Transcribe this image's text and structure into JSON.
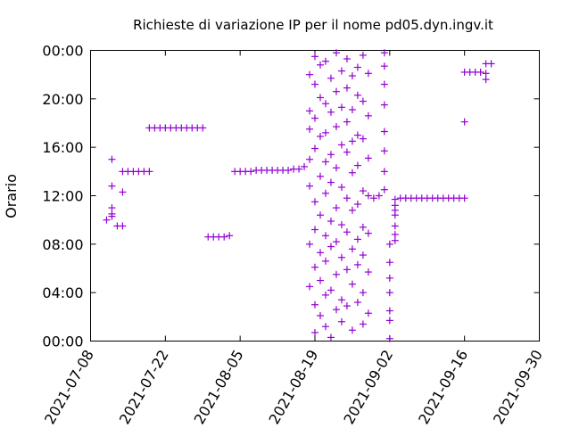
{
  "chart_data": {
    "type": "scatter",
    "title": "Richieste di variazione IP per il nome pd05.dyn.ingv.it",
    "xlabel": "",
    "ylabel": "Orario",
    "x_ticks": [
      "2021-07-08",
      "2021-07-22",
      "2021-08-05",
      "2021-08-19",
      "2021-09-02",
      "2021-09-16",
      "2021-09-30"
    ],
    "x_range": [
      "2021-07-08",
      "2021-09-30"
    ],
    "y_ticks": [
      "00:00",
      "04:00",
      "08:00",
      "12:00",
      "16:00",
      "20:00",
      "00:00"
    ],
    "y_range_hours": [
      0,
      24
    ],
    "grid": false,
    "marker": "+",
    "color": "#9400d3",
    "points": [
      [
        "2021-07-11",
        10.0
      ],
      [
        "2021-07-12",
        10.3
      ],
      [
        "2021-07-12",
        11.0
      ],
      [
        "2021-07-12",
        10.5
      ],
      [
        "2021-07-12",
        12.8
      ],
      [
        "2021-07-12",
        15.0
      ],
      [
        "2021-07-13",
        9.5
      ],
      [
        "2021-07-14",
        9.5
      ],
      [
        "2021-07-14",
        12.3
      ],
      [
        "2021-07-14",
        14.0
      ],
      [
        "2021-07-15",
        14.0
      ],
      [
        "2021-07-16",
        14.0
      ],
      [
        "2021-07-17",
        14.0
      ],
      [
        "2021-07-18",
        14.0
      ],
      [
        "2021-07-19",
        14.0
      ],
      [
        "2021-07-19",
        17.6
      ],
      [
        "2021-07-20",
        17.6
      ],
      [
        "2021-07-21",
        17.6
      ],
      [
        "2021-07-22",
        17.6
      ],
      [
        "2021-07-23",
        17.6
      ],
      [
        "2021-07-24",
        17.6
      ],
      [
        "2021-07-25",
        17.6
      ],
      [
        "2021-07-26",
        17.6
      ],
      [
        "2021-07-27",
        17.6
      ],
      [
        "2021-07-28",
        17.6
      ],
      [
        "2021-07-29",
        17.6
      ],
      [
        "2021-07-30",
        8.6
      ],
      [
        "2021-07-31",
        8.6
      ],
      [
        "2021-08-01",
        8.6
      ],
      [
        "2021-08-02",
        8.6
      ],
      [
        "2021-08-03",
        8.7
      ],
      [
        "2021-08-04",
        14.0
      ],
      [
        "2021-08-05",
        14.0
      ],
      [
        "2021-08-06",
        14.0
      ],
      [
        "2021-08-07",
        14.0
      ],
      [
        "2021-08-08",
        14.1
      ],
      [
        "2021-08-09",
        14.1
      ],
      [
        "2021-08-10",
        14.1
      ],
      [
        "2021-08-11",
        14.1
      ],
      [
        "2021-08-12",
        14.1
      ],
      [
        "2021-08-13",
        14.1
      ],
      [
        "2021-08-14",
        14.1
      ],
      [
        "2021-08-15",
        14.2
      ],
      [
        "2021-08-16",
        14.2
      ],
      [
        "2021-08-17",
        14.4
      ],
      [
        "2021-08-18",
        15.0
      ],
      [
        "2021-08-18",
        22.0
      ],
      [
        "2021-08-18",
        19.0
      ],
      [
        "2021-08-18",
        17.5
      ],
      [
        "2021-08-18",
        12.8
      ],
      [
        "2021-08-18",
        8.0
      ],
      [
        "2021-08-18",
        4.5
      ],
      [
        "2021-08-19",
        23.5
      ],
      [
        "2021-08-19",
        21.2
      ],
      [
        "2021-08-19",
        18.4
      ],
      [
        "2021-08-19",
        15.9
      ],
      [
        "2021-08-19",
        11.5
      ],
      [
        "2021-08-19",
        9.2
      ],
      [
        "2021-08-19",
        6.1
      ],
      [
        "2021-08-19",
        3.0
      ],
      [
        "2021-08-19",
        0.7
      ],
      [
        "2021-08-20",
        22.8
      ],
      [
        "2021-08-20",
        20.1
      ],
      [
        "2021-08-20",
        16.9
      ],
      [
        "2021-08-20",
        13.6
      ],
      [
        "2021-08-20",
        10.4
      ],
      [
        "2021-08-20",
        7.3
      ],
      [
        "2021-08-20",
        5.0
      ],
      [
        "2021-08-20",
        2.1
      ],
      [
        "2021-08-21",
        23.1
      ],
      [
        "2021-08-21",
        19.6
      ],
      [
        "2021-08-21",
        17.2
      ],
      [
        "2021-08-21",
        14.8
      ],
      [
        "2021-08-21",
        12.2
      ],
      [
        "2021-08-21",
        8.7
      ],
      [
        "2021-08-21",
        6.6
      ],
      [
        "2021-08-21",
        3.8
      ],
      [
        "2021-08-21",
        1.2
      ],
      [
        "2021-08-22",
        21.7
      ],
      [
        "2021-08-22",
        18.9
      ],
      [
        "2021-08-22",
        15.4
      ],
      [
        "2021-08-22",
        13.1
      ],
      [
        "2021-08-22",
        9.9
      ],
      [
        "2021-08-22",
        7.8
      ],
      [
        "2021-08-22",
        4.2
      ],
      [
        "2021-08-22",
        0.3
      ],
      [
        "2021-08-23",
        23.8
      ],
      [
        "2021-08-23",
        20.6
      ],
      [
        "2021-08-23",
        17.7
      ],
      [
        "2021-08-23",
        14.3
      ],
      [
        "2021-08-23",
        11.0
      ],
      [
        "2021-08-23",
        8.2
      ],
      [
        "2021-08-23",
        5.5
      ],
      [
        "2021-08-23",
        2.6
      ],
      [
        "2021-08-24",
        22.3
      ],
      [
        "2021-08-24",
        19.3
      ],
      [
        "2021-08-24",
        16.2
      ],
      [
        "2021-08-24",
        12.7
      ],
      [
        "2021-08-24",
        9.6
      ],
      [
        "2021-08-24",
        6.9
      ],
      [
        "2021-08-24",
        3.4
      ],
      [
        "2021-08-24",
        1.6
      ],
      [
        "2021-08-25",
        23.3
      ],
      [
        "2021-08-25",
        20.9
      ],
      [
        "2021-08-25",
        18.1
      ],
      [
        "2021-08-25",
        15.6
      ],
      [
        "2021-08-25",
        11.8
      ],
      [
        "2021-08-25",
        9.0
      ],
      [
        "2021-08-25",
        5.9
      ],
      [
        "2021-08-25",
        2.9
      ],
      [
        "2021-08-26",
        21.9
      ],
      [
        "2021-08-26",
        19.1
      ],
      [
        "2021-08-26",
        16.5
      ],
      [
        "2021-08-26",
        13.9
      ],
      [
        "2021-08-26",
        10.8
      ],
      [
        "2021-08-26",
        7.6
      ],
      [
        "2021-08-26",
        4.7
      ],
      [
        "2021-08-26",
        0.9
      ],
      [
        "2021-08-27",
        22.6
      ],
      [
        "2021-08-27",
        20.3
      ],
      [
        "2021-08-27",
        17.0
      ],
      [
        "2021-08-27",
        14.5
      ],
      [
        "2021-08-27",
        11.3
      ],
      [
        "2021-08-27",
        8.4
      ],
      [
        "2021-08-27",
        6.3
      ],
      [
        "2021-08-27",
        3.2
      ],
      [
        "2021-08-28",
        23.6
      ],
      [
        "2021-08-28",
        19.8
      ],
      [
        "2021-08-28",
        16.7
      ],
      [
        "2021-08-28",
        12.4
      ],
      [
        "2021-08-28",
        9.4
      ],
      [
        "2021-08-28",
        7.1
      ],
      [
        "2021-08-28",
        4.0
      ],
      [
        "2021-08-28",
        1.4
      ],
      [
        "2021-08-29",
        22.1
      ],
      [
        "2021-08-29",
        18.6
      ],
      [
        "2021-08-29",
        15.1
      ],
      [
        "2021-08-29",
        12.0
      ],
      [
        "2021-08-29",
        8.9
      ],
      [
        "2021-08-29",
        5.7
      ],
      [
        "2021-08-29",
        2.3
      ],
      [
        "2021-08-30",
        11.8
      ],
      [
        "2021-08-31",
        12.0
      ],
      [
        "2021-09-01",
        23.8
      ],
      [
        "2021-09-01",
        22.7
      ],
      [
        "2021-09-01",
        21.2
      ],
      [
        "2021-09-01",
        19.5
      ],
      [
        "2021-09-01",
        17.3
      ],
      [
        "2021-09-01",
        15.7
      ],
      [
        "2021-09-01",
        14.0
      ],
      [
        "2021-09-01",
        12.5
      ],
      [
        "2021-09-02",
        8.0
      ],
      [
        "2021-09-02",
        6.5
      ],
      [
        "2021-09-02",
        5.2
      ],
      [
        "2021-09-02",
        4.0
      ],
      [
        "2021-09-02",
        2.5
      ],
      [
        "2021-09-02",
        1.7
      ],
      [
        "2021-09-02",
        0.2
      ],
      [
        "2021-09-03",
        11.7
      ],
      [
        "2021-09-03",
        11.2
      ],
      [
        "2021-09-03",
        10.8
      ],
      [
        "2021-09-03",
        10.4
      ],
      [
        "2021-09-03",
        9.5
      ],
      [
        "2021-09-03",
        8.8
      ],
      [
        "2021-09-03",
        8.3
      ],
      [
        "2021-09-04",
        11.8
      ],
      [
        "2021-09-05",
        11.8
      ],
      [
        "2021-09-06",
        11.8
      ],
      [
        "2021-09-07",
        11.8
      ],
      [
        "2021-09-08",
        11.8
      ],
      [
        "2021-09-09",
        11.8
      ],
      [
        "2021-09-10",
        11.8
      ],
      [
        "2021-09-11",
        11.8
      ],
      [
        "2021-09-12",
        11.8
      ],
      [
        "2021-09-13",
        11.8
      ],
      [
        "2021-09-14",
        11.8
      ],
      [
        "2021-09-15",
        11.8
      ],
      [
        "2021-09-16",
        11.8
      ],
      [
        "2021-09-16",
        18.1
      ],
      [
        "2021-09-16",
        22.2
      ],
      [
        "2021-09-17",
        22.2
      ],
      [
        "2021-09-18",
        22.2
      ],
      [
        "2021-09-19",
        22.2
      ],
      [
        "2021-09-20",
        22.1
      ],
      [
        "2021-09-20",
        21.6
      ],
      [
        "2021-09-20",
        22.9
      ],
      [
        "2021-09-21",
        22.9
      ]
    ]
  }
}
